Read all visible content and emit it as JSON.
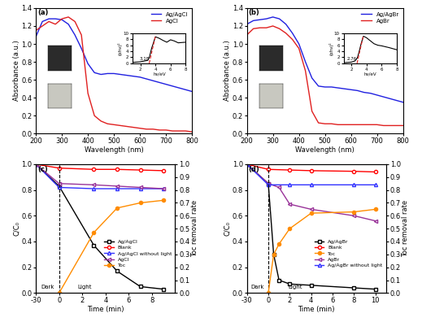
{
  "chart_data": [
    {
      "type": "line",
      "label": "(a)",
      "x_label": "Wavelength (nm)",
      "y_label": "Absorbance (a.u.)",
      "x": [
        200,
        225,
        250,
        275,
        300,
        325,
        350,
        375,
        400,
        425,
        450,
        475,
        500,
        525,
        550,
        575,
        600,
        625,
        650,
        675,
        700,
        725,
        750,
        775,
        800
      ],
      "series": [
        {
          "name": "Ag/AgCl",
          "color": "#2020e0",
          "line_style": "solid",
          "values": [
            1.08,
            1.25,
            1.28,
            1.28,
            1.27,
            1.22,
            1.1,
            0.95,
            0.78,
            0.68,
            0.66,
            0.67,
            0.67,
            0.66,
            0.65,
            0.64,
            0.63,
            0.61,
            0.59,
            0.57,
            0.55,
            0.53,
            0.51,
            0.49,
            0.47
          ]
        },
        {
          "name": "AgCl",
          "color": "#e02020",
          "line_style": "solid",
          "values": [
            1.15,
            1.2,
            1.25,
            1.22,
            1.28,
            1.3,
            1.25,
            1.1,
            0.45,
            0.2,
            0.14,
            0.11,
            0.1,
            0.09,
            0.08,
            0.07,
            0.06,
            0.05,
            0.05,
            0.04,
            0.04,
            0.03,
            0.03,
            0.03,
            0.02
          ]
        }
      ],
      "xlim": [
        200,
        800
      ],
      "xticks": [
        200,
        300,
        400,
        500,
        600,
        700,
        800
      ],
      "ylim": [
        0.0,
        1.4
      ],
      "yticks": [
        0.0,
        0.2,
        0.4,
        0.6,
        0.8,
        1.0,
        1.2,
        1.4
      ],
      "legend": "upper right",
      "inset": {
        "type": "line",
        "x_label": "hν/eV",
        "y_label": "(αhν)²",
        "annotation": "3.18",
        "series": [
          {
            "color": "#000000",
            "line_style": "solid",
            "x": [
              1,
              2,
              3,
              3.2,
              3.5,
              4,
              4.5,
              5,
              5.5,
              6,
              6.5,
              7,
              7.5,
              8
            ],
            "values": [
              0.3,
              0.5,
              1.0,
              2.0,
              5.0,
              8.8,
              8.3,
              7.6,
              7.0,
              7.8,
              7.4,
              6.8,
              6.9,
              7.0
            ]
          },
          {
            "color": "#e02020",
            "line_style": "dashed",
            "x": [
              3.18,
              4.0
            ],
            "values": [
              0,
              9
            ]
          }
        ],
        "xlim": [
          1,
          8
        ],
        "xticks": [
          2,
          4,
          6,
          8
        ],
        "ylim": [
          0,
          10
        ],
        "yticks": [
          0,
          2,
          4,
          6,
          8,
          10
        ]
      }
    },
    {
      "type": "line",
      "label": "(b)",
      "x_label": "Wavelength (nm)",
      "y_label": "Absorbance (a.u.)",
      "x": [
        200,
        225,
        250,
        275,
        300,
        325,
        350,
        375,
        400,
        425,
        450,
        475,
        500,
        525,
        550,
        575,
        600,
        625,
        650,
        675,
        700,
        725,
        750,
        775,
        800
      ],
      "series": [
        {
          "name": "Ag/AgBr",
          "color": "#2020e0",
          "line_style": "solid",
          "values": [
            1.22,
            1.26,
            1.27,
            1.28,
            1.3,
            1.28,
            1.22,
            1.12,
            1.0,
            0.8,
            0.62,
            0.53,
            0.52,
            0.52,
            0.51,
            0.5,
            0.49,
            0.48,
            0.46,
            0.45,
            0.43,
            0.41,
            0.39,
            0.37,
            0.35
          ]
        },
        {
          "name": "AgBr",
          "color": "#e02020",
          "line_style": "solid",
          "values": [
            1.1,
            1.17,
            1.18,
            1.18,
            1.2,
            1.17,
            1.12,
            1.05,
            0.95,
            0.7,
            0.25,
            0.12,
            0.11,
            0.11,
            0.1,
            0.1,
            0.1,
            0.1,
            0.1,
            0.1,
            0.1,
            0.09,
            0.09,
            0.09,
            0.09
          ]
        }
      ],
      "xlim": [
        200,
        800
      ],
      "xticks": [
        200,
        300,
        400,
        500,
        600,
        700,
        800
      ],
      "ylim": [
        0.0,
        1.4
      ],
      "yticks": [
        0.0,
        0.2,
        0.4,
        0.6,
        0.8,
        1.0,
        1.2,
        1.4
      ],
      "legend": "upper right",
      "inset": {
        "type": "line",
        "x_label": "hν/eV",
        "y_label": "(αhν)²",
        "annotation": "2.76",
        "series": [
          {
            "color": "#000000",
            "line_style": "solid",
            "x": [
              1,
              2,
              2.5,
              2.8,
              3,
              3.3,
              3.6,
              4,
              4.5,
              5,
              5.5,
              6,
              7,
              8
            ],
            "values": [
              0.2,
              0.4,
              0.8,
              1.8,
              3.5,
              6.5,
              9.0,
              8.5,
              7.5,
              6.5,
              6.0,
              5.8,
              5.2,
              4.5
            ]
          },
          {
            "color": "#e02020",
            "line_style": "dashed",
            "x": [
              2.76,
              3.6
            ],
            "values": [
              0,
              9.2
            ]
          }
        ],
        "xlim": [
          1,
          8
        ],
        "xticks": [
          2,
          4,
          6,
          8
        ],
        "ylim": [
          0,
          10
        ],
        "yticks": [
          0,
          2,
          4,
          6,
          8,
          10
        ]
      }
    },
    {
      "type": "line",
      "label": "(c)",
      "x_label": "Time (min)",
      "y_label": "C/C₀",
      "y2_label": "Toc removal rate",
      "light_on": 0,
      "phase_labels": [
        "Dark",
        "Light"
      ],
      "series": [
        {
          "name": "Ag/AgCl",
          "color": "#000000",
          "marker": "open_square",
          "line_style": "solid",
          "x": [
            -30,
            0,
            3,
            5,
            7,
            9
          ],
          "values": [
            1.0,
            0.83,
            0.37,
            0.17,
            0.05,
            0.03
          ]
        },
        {
          "name": "Blank",
          "color": "#ff0000",
          "marker": "open_circle",
          "line_style": "solid",
          "x": [
            -30,
            0,
            3,
            5,
            7,
            9
          ],
          "values": [
            1.0,
            0.97,
            0.96,
            0.96,
            0.955,
            0.95
          ]
        },
        {
          "name": "Ag/AgCl without light",
          "color": "#3333ff",
          "marker": "open_triangle",
          "line_style": "solid",
          "x": [
            -30,
            0,
            3,
            5,
            7,
            9
          ],
          "values": [
            1.0,
            0.82,
            0.81,
            0.81,
            0.81,
            0.81
          ]
        },
        {
          "name": "AgCl",
          "color": "#993399",
          "marker": "open_left_triangle",
          "line_style": "solid",
          "x": [
            -30,
            0,
            3,
            5,
            7,
            9
          ],
          "values": [
            1.0,
            0.85,
            0.84,
            0.83,
            0.82,
            0.81
          ]
        },
        {
          "name": "Toc",
          "color": "#ff8c00",
          "marker": "filled_circle",
          "line_style": "solid",
          "axis": "y2",
          "x": [
            0,
            3,
            5,
            7,
            9
          ],
          "values": [
            0.0,
            0.47,
            0.66,
            0.7,
            0.72
          ]
        }
      ],
      "xlim": [
        -30,
        10
      ],
      "xticks": [
        -30,
        0,
        2,
        4,
        6,
        8
      ],
      "ylim": [
        0.0,
        1.0
      ],
      "yticks": [
        0.0,
        0.2,
        0.4,
        0.6,
        0.8,
        1.0
      ],
      "y2lim": [
        0.0,
        1.0
      ],
      "y2ticks": [
        0.0,
        0.1,
        0.2,
        0.3,
        0.4,
        0.5,
        0.6,
        0.7,
        0.8,
        0.9,
        1.0
      ],
      "legend": "lower right"
    },
    {
      "type": "line",
      "label": "(d)",
      "x_label": "Time (min)",
      "y_label": "C/C₀",
      "y2_label": "Toc removal rate",
      "light_on": 0,
      "phase_labels": [
        "Dark",
        "Light"
      ],
      "series": [
        {
          "name": "Ag/AgBr",
          "color": "#000000",
          "marker": "open_square",
          "line_style": "solid",
          "x": [
            -30,
            0,
            0.5,
            1,
            2,
            4,
            8,
            10
          ],
          "values": [
            1.0,
            0.85,
            0.3,
            0.1,
            0.07,
            0.06,
            0.04,
            0.03
          ]
        },
        {
          "name": "Blank",
          "color": "#ff0000",
          "marker": "open_circle",
          "line_style": "solid",
          "x": [
            -30,
            0,
            2,
            4,
            8,
            10
          ],
          "values": [
            1.0,
            0.96,
            0.955,
            0.95,
            0.945,
            0.94
          ]
        },
        {
          "name": "Toc",
          "color": "#ff8c00",
          "marker": "filled_circle",
          "line_style": "solid",
          "axis": "y2",
          "x": [
            0,
            0.5,
            1,
            2,
            4,
            8,
            10
          ],
          "values": [
            0.0,
            0.3,
            0.38,
            0.5,
            0.62,
            0.63,
            0.65
          ]
        },
        {
          "name": "AgBr",
          "color": "#993399",
          "marker": "open_left_triangle",
          "line_style": "solid",
          "x": [
            -30,
            0,
            1,
            2,
            4,
            8,
            10
          ],
          "values": [
            1.0,
            0.85,
            0.82,
            0.69,
            0.65,
            0.6,
            0.56
          ]
        },
        {
          "name": "Ag/AgBr without light",
          "color": "#3333ff",
          "marker": "open_triangle",
          "line_style": "solid",
          "x": [
            -30,
            0,
            2,
            4,
            8,
            10
          ],
          "values": [
            1.0,
            0.84,
            0.84,
            0.84,
            0.84,
            0.84
          ]
        }
      ],
      "xlim": [
        -30,
        11
      ],
      "xticks": [
        -30,
        0,
        2,
        4,
        6,
        8,
        10
      ],
      "ylim": [
        0.0,
        1.0
      ],
      "yticks": [
        0.0,
        0.2,
        0.4,
        0.6,
        0.8,
        1.0
      ],
      "y2lim": [
        0.0,
        1.0
      ],
      "y2ticks": [
        0.0,
        0.1,
        0.2,
        0.3,
        0.4,
        0.5,
        0.6,
        0.7,
        0.8,
        0.9,
        1.0
      ],
      "legend": "lower right"
    }
  ]
}
